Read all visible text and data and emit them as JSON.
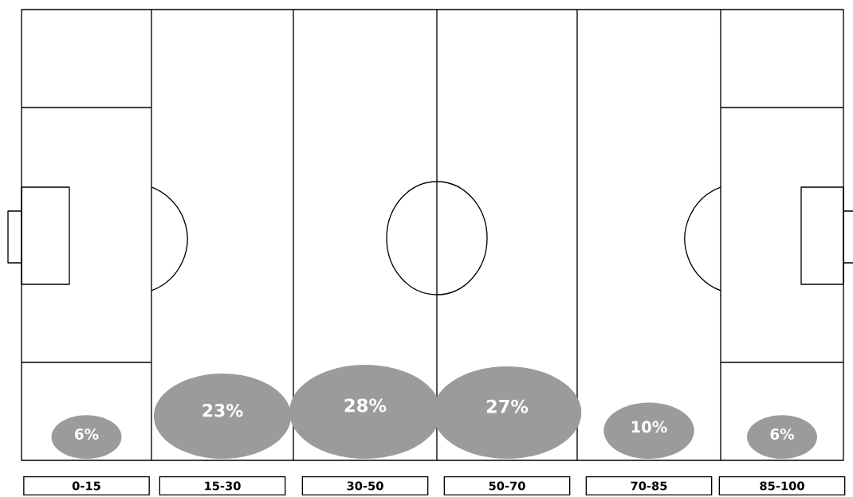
{
  "chart_data": {
    "type": "other",
    "categories": [
      "0-15",
      "15-30",
      "30-50",
      "50-70",
      "70-85",
      "85-100"
    ],
    "values": [
      6,
      23,
      28,
      27,
      10,
      6
    ],
    "value_labels": [
      "6%",
      "23%",
      "28%",
      "27%",
      "10%",
      "6%"
    ],
    "color": "#9b9b9b"
  }
}
